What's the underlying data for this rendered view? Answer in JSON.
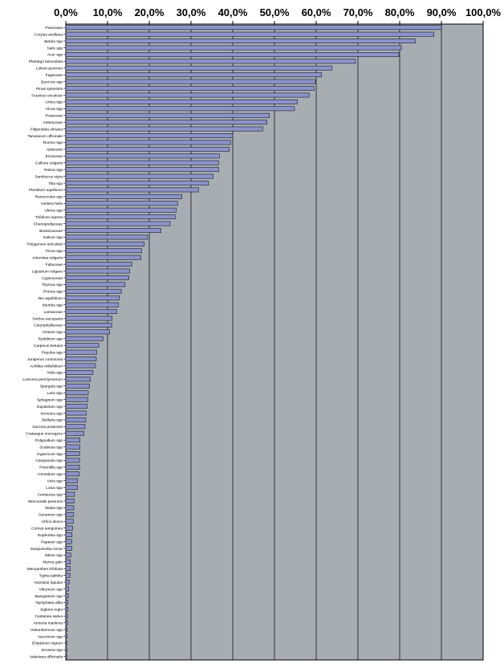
{
  "chart_data": {
    "type": "bar",
    "orientation": "horizontal",
    "title": "",
    "xlabel": "",
    "ylabel": "",
    "xlim": [
      0,
      100
    ],
    "x_ticks": [
      "0,0%",
      "10,0%",
      "20,0%",
      "30,0%",
      "40,0%",
      "50,0%",
      "60,0%",
      "70,0%",
      "80,0%",
      "90,0%",
      "100,0%"
    ],
    "x_axis_position": "top",
    "grid": "vertical",
    "legend": "none",
    "colors": {
      "plot_background": "#a8adb2",
      "bar_fill": "#8b93c7",
      "bar_stroke": "#1a1a33",
      "gridline": "#000000"
    },
    "categories": [
      "Poaceaea",
      "Corylus avellana",
      "Betula spp",
      "Salix spp",
      "Acer spp",
      "Plantago lanceolata",
      "Lolium perenne",
      "Fagaceae",
      "Quercus spp",
      "Pinus sylvestris",
      "Fraxinus excelsior",
      "Urtica spp",
      "Alnus spp",
      "Rosaceae",
      "Asteraceae",
      "Filipendula ulmaria",
      "Taraxacum officinale",
      "Rumex spp",
      "Apiaceae",
      "Ericaceae",
      "Calluna vulgaris",
      "Rubus spp",
      "Sambucus nigra",
      "Tilia spp",
      "Pteridium aquilinum",
      "Ranunculus spp",
      "Hedera helix",
      "Ulmus spp",
      "Trifolium repens",
      "Chenopodiaceae",
      "Brassicaceae",
      "Galium spp",
      "Polygonum aviculare",
      "Picea spp",
      "Artemisia vulgaris",
      "Fabaceae",
      "Ligustrum vulgare",
      "Cyperaceae",
      "Thymus spp",
      "Prunus spp",
      "Ilex aquifolium",
      "Mentha spp",
      "Lamiaceae",
      "Sorbus aucuparia",
      "Caryophyllaceae",
      "Cirsium spp",
      "Epilobium spp",
      "Carpinus betulus",
      "Populus spp",
      "Juniperus communis",
      "Achillea millefolium",
      "Viola spp",
      "Lonicera periclymenum",
      "Spergula spp",
      "Larix spp",
      "Sphagnum spp",
      "Equisetum spp",
      "Veronica spp",
      "Stellaria spp",
      "Succisa pratensis",
      "Crataegus monogyna",
      "Polypodium spp",
      "Scabiosa spp",
      "Hypericum spp",
      "Campanula spp",
      "Potentilla spp",
      "Cerastium spp",
      "Vicia spp",
      "Lotus spp",
      "Centaurea spp",
      "Mercurialis perennis",
      "Malva spp",
      "Geranium spp",
      "Urtica dioica",
      "Cornus sanguinea",
      "Euphorbia spp",
      "Papaver spp",
      "Sanguisorba minor",
      "Silene spp",
      "Myrica gale",
      "Menyanthes trifoliata",
      "Typha latifolia",
      "Humulus lupulus",
      "Viburnum spp",
      "Sparganium spp",
      "Nymphaea alba",
      "Juglans regia",
      "Castanea sativa",
      "Armeria maritima",
      "Helianthemum spp",
      "Vaccinium spp",
      "Empetrum nigrum",
      "Drosera spp",
      "Valeriana officinalis"
    ],
    "values": [
      90.0,
      88.2,
      83.8,
      80.4,
      79.8,
      69.4,
      63.8,
      61.3,
      59.8,
      59.5,
      58.3,
      55.5,
      54.8,
      48.8,
      48.2,
      47.2,
      40.0,
      39.5,
      39.2,
      36.8,
      36.6,
      36.6,
      35.3,
      34.2,
      31.8,
      27.8,
      26.8,
      26.5,
      26.2,
      25.0,
      22.8,
      19.6,
      18.8,
      18.2,
      18.0,
      15.8,
      15.3,
      15.1,
      14.2,
      13.3,
      12.8,
      12.6,
      12.2,
      11.1,
      11.0,
      10.5,
      8.9,
      7.9,
      7.4,
      7.3,
      7.1,
      6.5,
      5.9,
      5.7,
      5.4,
      5.3,
      5.1,
      4.9,
      4.8,
      4.6,
      4.3,
      3.4,
      3.4,
      3.3,
      3.3,
      3.3,
      3.2,
      2.8,
      2.8,
      2.1,
      2.0,
      1.9,
      1.9,
      1.8,
      1.6,
      1.5,
      1.4,
      1.4,
      1.2,
      1.1,
      1.1,
      1.0,
      0.8,
      0.7,
      0.6,
      0.5,
      0.5,
      0.4,
      0.4,
      0.3,
      0.3,
      0.2,
      0.2,
      0.2
    ]
  }
}
